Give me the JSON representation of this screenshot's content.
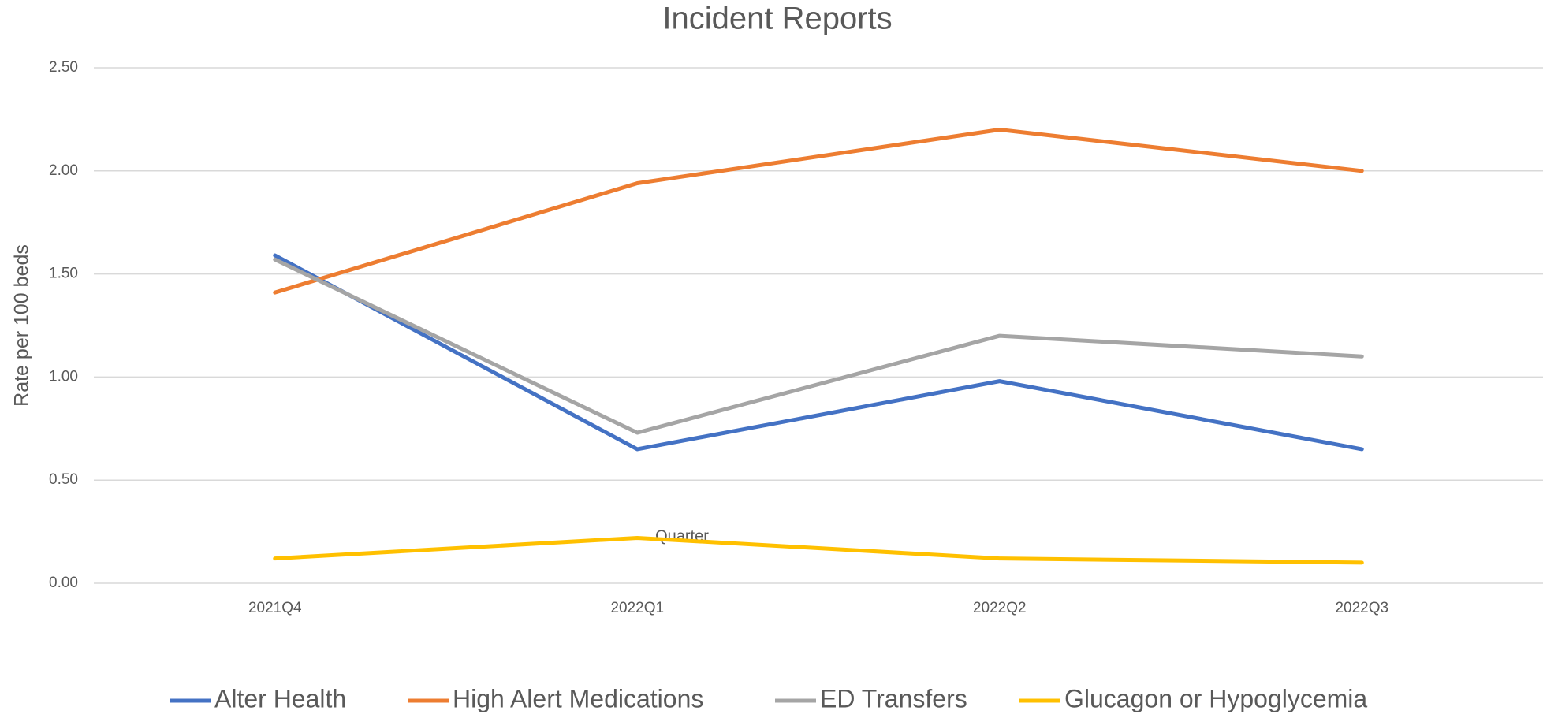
{
  "chart_data": {
    "type": "line",
    "title": "Incident Reports",
    "x_label": "Quarter",
    "y_label": "Rate per 100 beds",
    "categories": [
      "2021Q4",
      "2022Q1",
      "2022Q2",
      "2022Q3"
    ],
    "series": [
      {
        "name": "Alter Health",
        "color": "#4472c4",
        "values": [
          1.59,
          0.65,
          0.98,
          0.65
        ]
      },
      {
        "name": "High Alert Medications",
        "color": "#ed7d31",
        "values": [
          1.41,
          1.94,
          2.2,
          2.0
        ]
      },
      {
        "name": "ED Transfers",
        "color": "#a5a5a5",
        "values": [
          1.57,
          0.73,
          1.2,
          1.1
        ]
      },
      {
        "name": "Glucagon or Hypoglycemia",
        "color": "#ffc000",
        "values": [
          0.12,
          0.22,
          0.12,
          0.1
        ]
      }
    ],
    "ylim": [
      0,
      2.5
    ],
    "yticks": [
      {
        "value": 0,
        "label": "0.00"
      },
      {
        "value": 0.5,
        "label": "0.50"
      },
      {
        "value": 1,
        "label": "1.00"
      },
      {
        "value": 1.5,
        "label": "1.50"
      },
      {
        "value": 2,
        "label": "2.00"
      },
      {
        "value": 2.5,
        "label": "2.50"
      }
    ],
    "grid": true,
    "legend": "bottom"
  }
}
